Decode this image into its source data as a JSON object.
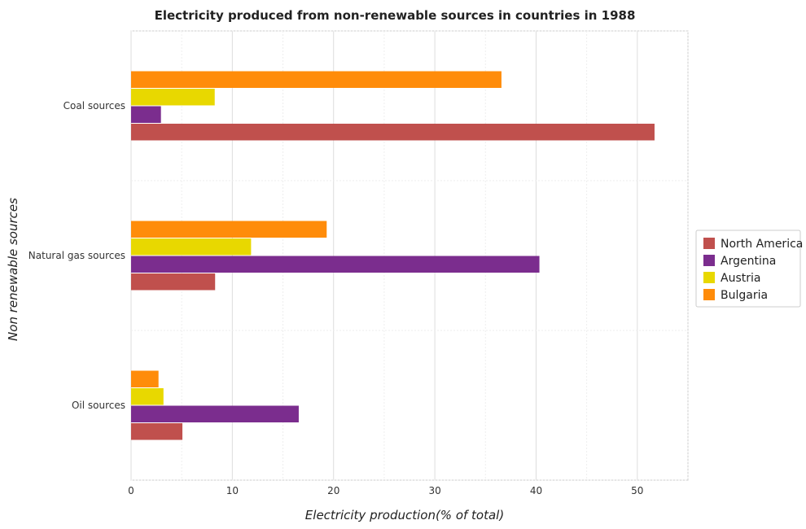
{
  "chart_data": {
    "type": "bar",
    "orientation": "horizontal",
    "title": "Electricity produced from non-renewable sources in countries in 1988",
    "xlabel": "Electricity production(% of total)",
    "ylabel": "Non renewable sources",
    "categories": [
      "Coal sources",
      "Natural gas sources",
      "Oil sources"
    ],
    "xlim": [
      0,
      55
    ],
    "xticks": [
      0,
      10,
      20,
      30,
      40,
      50
    ],
    "grid": true,
    "legend_position": "right",
    "series": [
      {
        "name": "North America",
        "color": "#c0504d",
        "values": [
          51.7,
          8.3,
          5.07
        ]
      },
      {
        "name": "Argentina",
        "color": "#7b2d8e",
        "values": [
          2.95,
          40.33,
          16.56
        ]
      },
      {
        "name": "Austria",
        "color": "#e8d800",
        "values": [
          8.26,
          11.85,
          3.2
        ]
      },
      {
        "name": "Bulgaria",
        "color": "#ff8c0a",
        "values": [
          36.58,
          19.32,
          2.71
        ]
      }
    ]
  }
}
